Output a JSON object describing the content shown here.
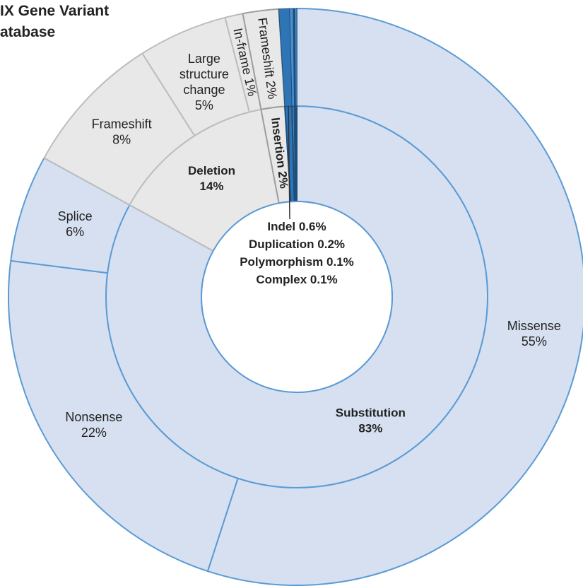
{
  "chart_data": {
    "type": "sunburst",
    "title": [
      "IX Gene Variant",
      "atabase"
    ],
    "nodes": [
      {
        "name": "Substitution",
        "value": 83,
        "value_label": "83%",
        "color": "#d6e0f0",
        "stroke": "#5b9bd5",
        "children": [
          {
            "name": "Missense",
            "value": 55,
            "value_label": "55%"
          },
          {
            "name": "Nonsense",
            "value": 22,
            "value_label": "22%"
          },
          {
            "name": "Splice",
            "value": 6,
            "value_label": "6%"
          }
        ]
      },
      {
        "name": "Deletion",
        "value": 14,
        "value_label": "14%",
        "color": "#e8e8e8",
        "stroke": "#bdbdbd",
        "children": [
          {
            "name": "Frameshift",
            "value": 8,
            "value_label": "8%"
          },
          {
            "name": "Large structure change",
            "value": 5,
            "value_label": "5%"
          },
          {
            "name": "In-frame",
            "value": 1,
            "value_label": "1%"
          }
        ]
      },
      {
        "name": "Insertion",
        "value": 2,
        "value_label": "2%",
        "color": "#e8e8e8",
        "stroke": "#9e9e9e",
        "children": [
          {
            "name": "Frameshift",
            "value": 2,
            "value_label": "2%"
          }
        ]
      },
      {
        "name": "Indel",
        "value": 0.6,
        "value_label": "0.6%",
        "color": "#2e75b6",
        "stroke": "#1f4e79"
      },
      {
        "name": "Duplication",
        "value": 0.2,
        "value_label": "0.2%",
        "color": "#4a90d0",
        "stroke": "#1f4e79"
      },
      {
        "name": "Polymorphism",
        "value": 0.1,
        "value_label": "0.1%",
        "color": "#1f4e79",
        "stroke": "#1f4e79"
      },
      {
        "name": "Complex",
        "value": 0.1,
        "value_label": "0.1%",
        "color": "#5b9bd5",
        "stroke": "#1f4e79"
      }
    ]
  }
}
